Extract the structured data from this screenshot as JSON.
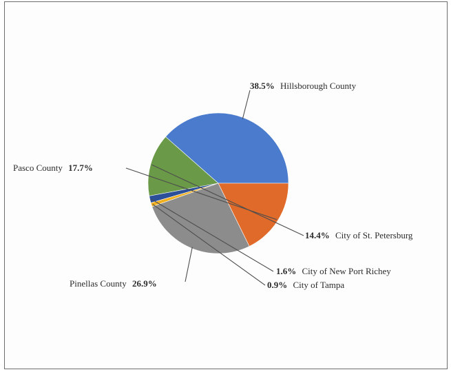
{
  "chart_data": {
    "type": "pie",
    "title": "",
    "slices": [
      {
        "label": "Hillsborough County",
        "pct_text": "38.5%",
        "value": 38.5,
        "color": "#4a7bcd"
      },
      {
        "label": "City of St. Petersburg",
        "pct_text": "14.4%",
        "value": 14.4,
        "color": "#6a9a48"
      },
      {
        "label": "City of New Port Richey",
        "pct_text": "1.6%",
        "value": 1.6,
        "color": "#2c4f9a"
      },
      {
        "label": "City of Tampa",
        "pct_text": "0.9%",
        "value": 0.9,
        "color": "#f0b020"
      },
      {
        "label": "Pinellas County",
        "pct_text": "26.9%",
        "value": 26.9,
        "color": "#8c8c8c"
      },
      {
        "label": "Pasco County",
        "pct_text": "17.7%",
        "value": 17.7,
        "color": "#e06a2a"
      }
    ],
    "legend": "none",
    "data_labels": "outside-with-leader-lines"
  }
}
